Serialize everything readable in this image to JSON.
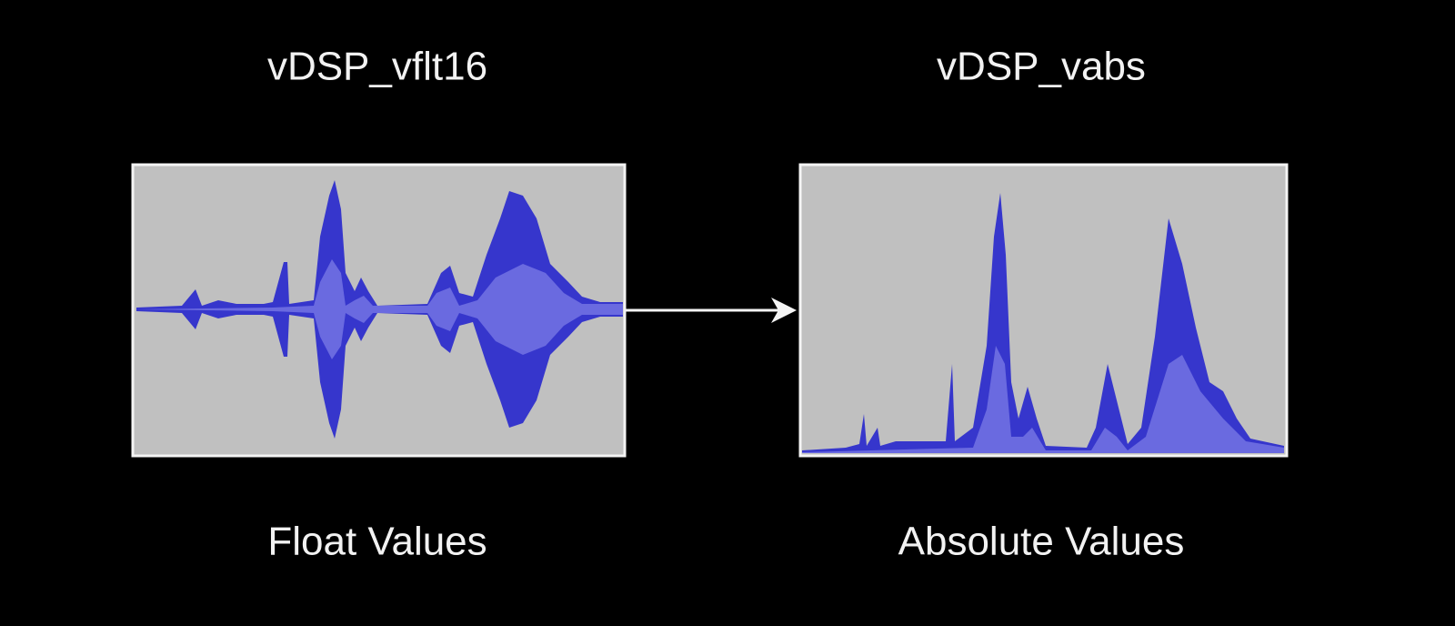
{
  "nodes": [
    {
      "title": "vDSP_vflt16",
      "label": "Float Values"
    },
    {
      "title": "vDSP_vabs",
      "label": "Absolute Values"
    }
  ]
}
